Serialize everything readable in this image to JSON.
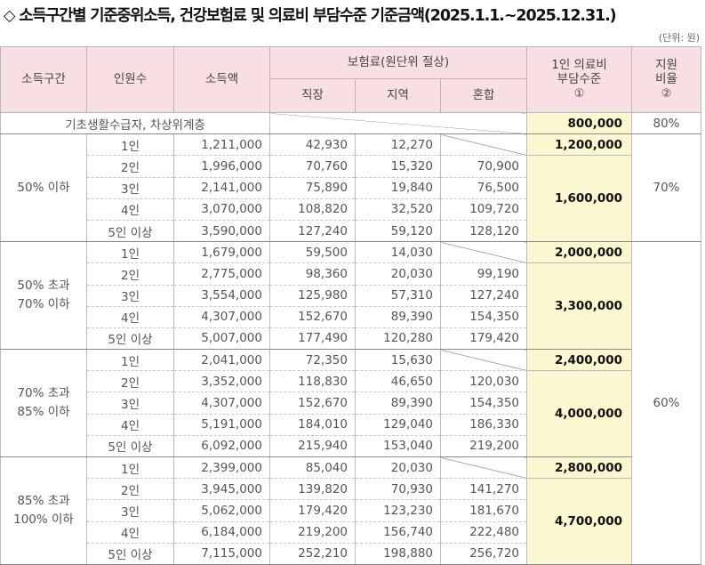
{
  "title": "◇ 소득구간별 기준중위소득, 건강보험료 및 의료비 부담수준 기준금액(2025.1.1.~2025.12.31.)",
  "unit": "(단위: 원)",
  "headers": {
    "bracket": "소득구간",
    "persons": "인원수",
    "income": "소득액",
    "premium": "보험료(원단위 절상)",
    "employee": "직장",
    "regional": "지역",
    "mixed": "혼합",
    "burden_line1": "1인 의료비",
    "burden_line2": "부담수준",
    "burden_mark": "①",
    "rate_line1": "지원",
    "rate_line2": "비율",
    "rate_mark": "②"
  },
  "basic": {
    "label": "기초생활수급자, 차상위계층",
    "burden": "800,000",
    "rate": "80%"
  },
  "groups": [
    {
      "label1": "50% 이하",
      "label2": "",
      "single_burden": "1,200,000",
      "multi_burden": "1,600,000",
      "rows": [
        {
          "persons": "1인",
          "income": "1,211,000",
          "employee": "42,930",
          "regional": "12,270",
          "mixed": ""
        },
        {
          "persons": "2인",
          "income": "1,996,000",
          "employee": "70,760",
          "regional": "15,320",
          "mixed": "70,900"
        },
        {
          "persons": "3인",
          "income": "2,141,000",
          "employee": "75,890",
          "regional": "19,840",
          "mixed": "76,500"
        },
        {
          "persons": "4인",
          "income": "3,070,000",
          "employee": "108,820",
          "regional": "32,520",
          "mixed": "109,720"
        },
        {
          "persons": "5인 이상",
          "income": "3,590,000",
          "employee": "127,240",
          "regional": "59,120",
          "mixed": "128,120"
        }
      ]
    },
    {
      "label1": "50% 초과",
      "label2": "70% 이하",
      "single_burden": "2,000,000",
      "multi_burden": "3,300,000",
      "rows": [
        {
          "persons": "1인",
          "income": "1,679,000",
          "employee": "59,500",
          "regional": "14,030",
          "mixed": ""
        },
        {
          "persons": "2인",
          "income": "2,775,000",
          "employee": "98,360",
          "regional": "20,030",
          "mixed": "99,190"
        },
        {
          "persons": "3인",
          "income": "3,554,000",
          "employee": "125,980",
          "regional": "57,310",
          "mixed": "127,240"
        },
        {
          "persons": "4인",
          "income": "4,307,000",
          "employee": "152,670",
          "regional": "89,390",
          "mixed": "154,350"
        },
        {
          "persons": "5인 이상",
          "income": "5,007,000",
          "employee": "177,490",
          "regional": "120,280",
          "mixed": "179,420"
        }
      ]
    },
    {
      "label1": "70% 초과",
      "label2": "85% 이하",
      "single_burden": "2,400,000",
      "multi_burden": "4,000,000",
      "rows": [
        {
          "persons": "1인",
          "income": "2,041,000",
          "employee": "72,350",
          "regional": "15,630",
          "mixed": ""
        },
        {
          "persons": "2인",
          "income": "3,352,000",
          "employee": "118,830",
          "regional": "46,650",
          "mixed": "120,030"
        },
        {
          "persons": "3인",
          "income": "4,307,000",
          "employee": "152,670",
          "regional": "89,390",
          "mixed": "154,350"
        },
        {
          "persons": "4인",
          "income": "5,191,000",
          "employee": "184,010",
          "regional": "129,040",
          "mixed": "186,330"
        },
        {
          "persons": "5인 이상",
          "income": "6,092,000",
          "employee": "215,940",
          "regional": "153,040",
          "mixed": "219,200"
        }
      ]
    },
    {
      "label1": "85% 초과",
      "label2": "100% 이하",
      "single_burden": "2,800,000",
      "multi_burden": "4,700,000",
      "rows": [
        {
          "persons": "1인",
          "income": "2,399,000",
          "employee": "85,040",
          "regional": "20,030",
          "mixed": ""
        },
        {
          "persons": "2인",
          "income": "3,945,000",
          "employee": "139,820",
          "regional": "70,930",
          "mixed": "141,270"
        },
        {
          "persons": "3인",
          "income": "5,062,000",
          "employee": "179,420",
          "regional": "123,230",
          "mixed": "181,670"
        },
        {
          "persons": "4인",
          "income": "6,184,000",
          "employee": "219,200",
          "regional": "156,740",
          "mixed": "222,480"
        },
        {
          "persons": "5인 이상",
          "income": "7,115,000",
          "employee": "252,210",
          "regional": "198,880",
          "mixed": "256,720"
        }
      ]
    }
  ],
  "rates": {
    "group1": "70%",
    "group_2_4": "60%"
  }
}
